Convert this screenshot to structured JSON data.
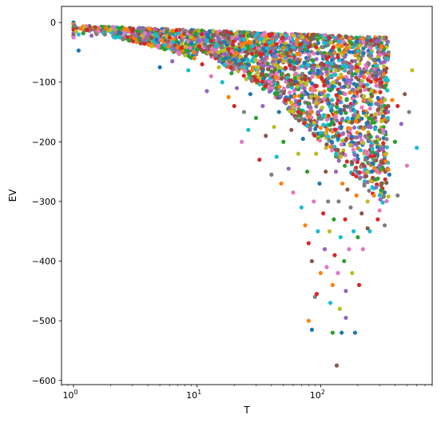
{
  "chart_data": {
    "type": "scatter",
    "title": "",
    "xlabel": "T",
    "ylabel": "EV",
    "x_scale": "log",
    "xlim": [
      0.8,
      800
    ],
    "ylim": [
      -607,
      27
    ],
    "x_ticks": [
      {
        "value": 1,
        "base": "10",
        "exp": "0"
      },
      {
        "value": 10,
        "base": "10",
        "exp": "1"
      },
      {
        "value": 100,
        "base": "10",
        "exp": "2"
      }
    ],
    "y_ticks": [
      {
        "value": 0,
        "label": "0"
      },
      {
        "value": -100,
        "label": "−100"
      },
      {
        "value": -200,
        "label": "−200"
      },
      {
        "value": -300,
        "label": "−300"
      },
      {
        "value": -400,
        "label": "−400"
      },
      {
        "value": -500,
        "label": "−500"
      },
      {
        "value": -600,
        "label": "−600"
      }
    ],
    "grid": false,
    "legend": "none",
    "colors": [
      "#1f77b4",
      "#ff7f0e",
      "#2ca02c",
      "#d62728",
      "#9467bd",
      "#8c564b",
      "#e377c2",
      "#7f7f7f",
      "#bcbd22",
      "#17becf"
    ],
    "series_note": "dense multi-colored point cloud; representative sample below",
    "points": [
      [
        1.0,
        0
      ],
      [
        1.0,
        -3
      ],
      [
        1.0,
        -8
      ],
      [
        1.0,
        -12
      ],
      [
        1.0,
        -18
      ],
      [
        1.0,
        -22
      ],
      [
        1.0,
        -25
      ],
      [
        1.02,
        -5
      ],
      [
        1.05,
        -15
      ],
      [
        1.1,
        -20
      ],
      [
        1.1,
        -47
      ],
      [
        1.15,
        -10
      ],
      [
        1.2,
        -18
      ],
      [
        1.3,
        -12
      ],
      [
        1.4,
        -22
      ],
      [
        1.5,
        -8
      ],
      [
        1.6,
        -15
      ],
      [
        1.8,
        -20
      ],
      [
        2.0,
        -12
      ],
      [
        2.2,
        -25
      ],
      [
        2.4,
        -18
      ],
      [
        2.6,
        -10
      ],
      [
        2.8,
        -30
      ],
      [
        3.0,
        -15
      ],
      [
        3.2,
        -22
      ],
      [
        3.5,
        -35
      ],
      [
        3.8,
        -18
      ],
      [
        4.0,
        -28
      ],
      [
        4.3,
        -40
      ],
      [
        4.6,
        -20
      ],
      [
        5.0,
        -75
      ],
      [
        5.2,
        -30
      ],
      [
        5.5,
        -45
      ],
      [
        6.0,
        -25
      ],
      [
        6.3,
        -65
      ],
      [
        6.6,
        -38
      ],
      [
        7.0,
        -50
      ],
      [
        7.5,
        -30
      ],
      [
        8.0,
        -55
      ],
      [
        8.5,
        -80
      ],
      [
        9.0,
        -35
      ],
      [
        9.5,
        -60
      ],
      [
        10,
        -45
      ],
      [
        11,
        -70
      ],
      [
        12,
        -115
      ],
      [
        12.5,
        -40
      ],
      [
        13,
        -90
      ],
      [
        14,
        -55
      ],
      [
        15,
        -75
      ],
      [
        16,
        -100
      ],
      [
        17,
        -60
      ],
      [
        18,
        -125
      ],
      [
        19,
        -85
      ],
      [
        20,
        -140
      ],
      [
        21,
        -110
      ],
      [
        22,
        -70
      ],
      [
        23,
        -200
      ],
      [
        24,
        -150
      ],
      [
        25,
        -95
      ],
      [
        26,
        -180
      ],
      [
        27,
        -120
      ],
      [
        28,
        -80
      ],
      [
        30,
        -160
      ],
      [
        32,
        -230
      ],
      [
        34,
        -140
      ],
      [
        36,
        -190
      ],
      [
        38,
        -110
      ],
      [
        40,
        -255
      ],
      [
        42,
        -175
      ],
      [
        44,
        -225
      ],
      [
        46,
        -150
      ],
      [
        48,
        -270
      ],
      [
        50,
        -200
      ],
      [
        52,
        -130
      ],
      [
        55,
        -245
      ],
      [
        58,
        -180
      ],
      [
        60,
        -285
      ],
      [
        63,
        -160
      ],
      [
        66,
        -220
      ],
      [
        70,
        -310
      ],
      [
        72,
        -195
      ],
      [
        75,
        -340
      ],
      [
        78,
        -250
      ],
      [
        80,
        -370
      ],
      [
        82,
        -180
      ],
      [
        85,
        -400
      ],
      [
        88,
        -300
      ],
      [
        90,
        -460
      ],
      [
        92,
        -220
      ],
      [
        95,
        -350
      ],
      [
        98,
        -270
      ],
      [
        100,
        -420
      ],
      [
        102,
        -190
      ],
      [
        105,
        -320
      ],
      [
        108,
        -380
      ],
      [
        110,
        -250
      ],
      [
        112,
        -410
      ],
      [
        115,
        -300
      ],
      [
        118,
        -350
      ],
      [
        120,
        -470
      ],
      [
        123,
        -200
      ],
      [
        125,
        -440
      ],
      [
        128,
        -330
      ],
      [
        130,
        -390
      ],
      [
        133,
        -250
      ],
      [
        135,
        -575
      ],
      [
        138,
        -420
      ],
      [
        140,
        -300
      ],
      [
        143,
        -480
      ],
      [
        145,
        -360
      ],
      [
        148,
        -520
      ],
      [
        150,
        -270
      ],
      [
        155,
        -400
      ],
      [
        158,
        -330
      ],
      [
        160,
        -450
      ],
      [
        165,
        -280
      ],
      [
        170,
        -380
      ],
      [
        175,
        -310
      ],
      [
        180,
        -420
      ],
      [
        185,
        -350
      ],
      [
        190,
        -520
      ],
      [
        195,
        -290
      ],
      [
        200,
        -360
      ],
      [
        205,
        -440
      ],
      [
        210,
        -260
      ],
      [
        215,
        -320
      ],
      [
        220,
        -380
      ],
      [
        230,
        -230
      ],
      [
        240,
        -300
      ],
      [
        250,
        -350
      ],
      [
        260,
        -250
      ],
      [
        270,
        -290
      ],
      [
        280,
        -200
      ],
      [
        290,
        -330
      ],
      [
        300,
        -240
      ],
      [
        310,
        -270
      ],
      [
        320,
        -180
      ],
      [
        330,
        -340
      ],
      [
        340,
        -220
      ],
      [
        350,
        -160
      ],
      [
        360,
        -255
      ],
      [
        380,
        -130
      ],
      [
        400,
        -200
      ],
      [
        420,
        -140
      ],
      [
        450,
        -170
      ],
      [
        480,
        -120
      ],
      [
        500,
        -240
      ],
      [
        520,
        -150
      ],
      [
        550,
        -80
      ],
      [
        600,
        -210
      ],
      [
        85,
        -515
      ],
      [
        80,
        -500
      ],
      [
        125,
        -520
      ],
      [
        93,
        -455
      ],
      [
        160,
        -495
      ],
      [
        240,
        -345
      ],
      [
        300,
        -315
      ],
      [
        420,
        -290
      ]
    ]
  }
}
